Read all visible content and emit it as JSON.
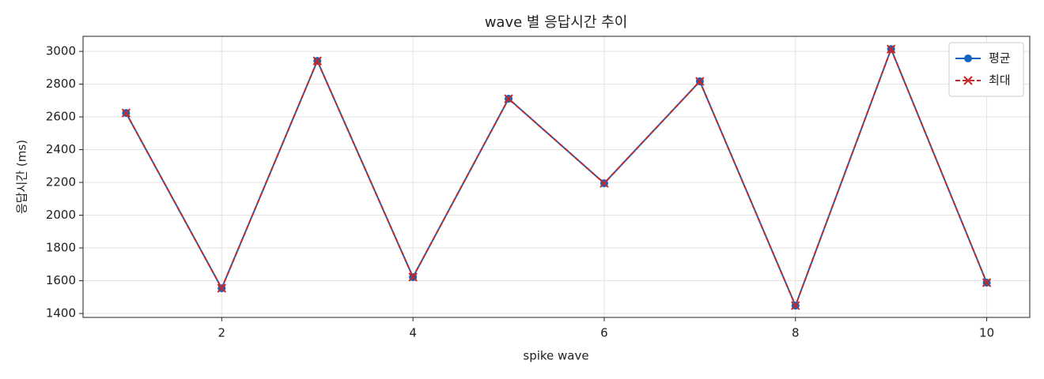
{
  "chart_data": {
    "type": "line",
    "title": "wave 별 응답시간 추이",
    "xlabel": "spike wave",
    "ylabel": "응답시간 (ms)",
    "x": [
      1,
      2,
      3,
      4,
      5,
      6,
      7,
      8,
      9,
      10
    ],
    "series": [
      {
        "name": "평균",
        "color": "#1565c0",
        "marker": "o",
        "linestyle": "solid",
        "values": [
          2624,
          1554,
          2942,
          1622,
          2711,
          2195,
          2817,
          1448,
          3014,
          1588
        ]
      },
      {
        "name": "최대",
        "color": "#c62828",
        "marker": "x",
        "linestyle": "dashed",
        "values": [
          2624,
          1554,
          2942,
          1622,
          2711,
          2195,
          2817,
          1448,
          3014,
          1588
        ]
      }
    ],
    "xlim": [
      0.55,
      10.45
    ],
    "ylim": [
      1376,
      3092
    ],
    "xticks": [
      2,
      4,
      6,
      8,
      10
    ],
    "yticks": [
      1400,
      1600,
      1800,
      2000,
      2200,
      2400,
      2600,
      2800,
      3000
    ],
    "grid": true,
    "legend": "upper right"
  }
}
